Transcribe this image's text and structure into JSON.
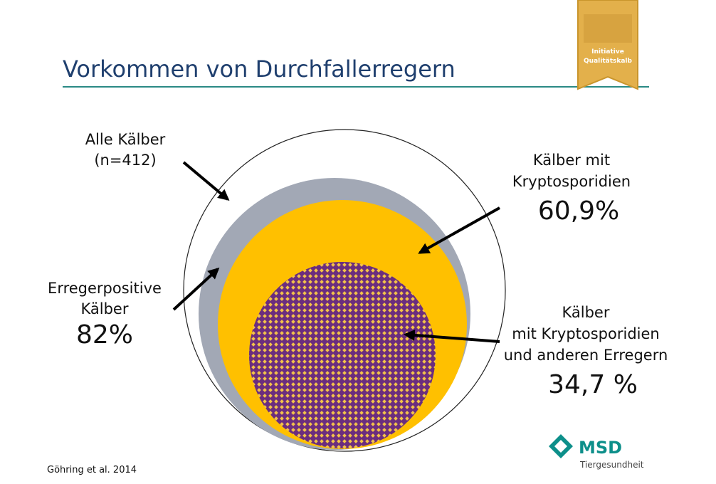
{
  "title": "Vorkommen von Durchfallerregern",
  "badge": {
    "line1": "Initiative",
    "line2": "Qualitätskalb"
  },
  "labels": {
    "all": {
      "line1": "Alle Kälber",
      "line2": "(n=412)"
    },
    "positive": {
      "line1": "Erregerpositive",
      "line2": "Kälber",
      "value": "82%"
    },
    "crypto": {
      "line1": "Kälber mit",
      "line2": "Kryptosporidien",
      "value": "60,9%"
    },
    "crypto_other": {
      "line1": "Kälber",
      "line2": "mit Kryptosporidien",
      "line3": "und anderen Erregern",
      "value": "34,7 %"
    }
  },
  "source": "Göhring et al. 2014",
  "logo": {
    "name": "MSD",
    "subtitle": "Tiergesundheit"
  }
}
